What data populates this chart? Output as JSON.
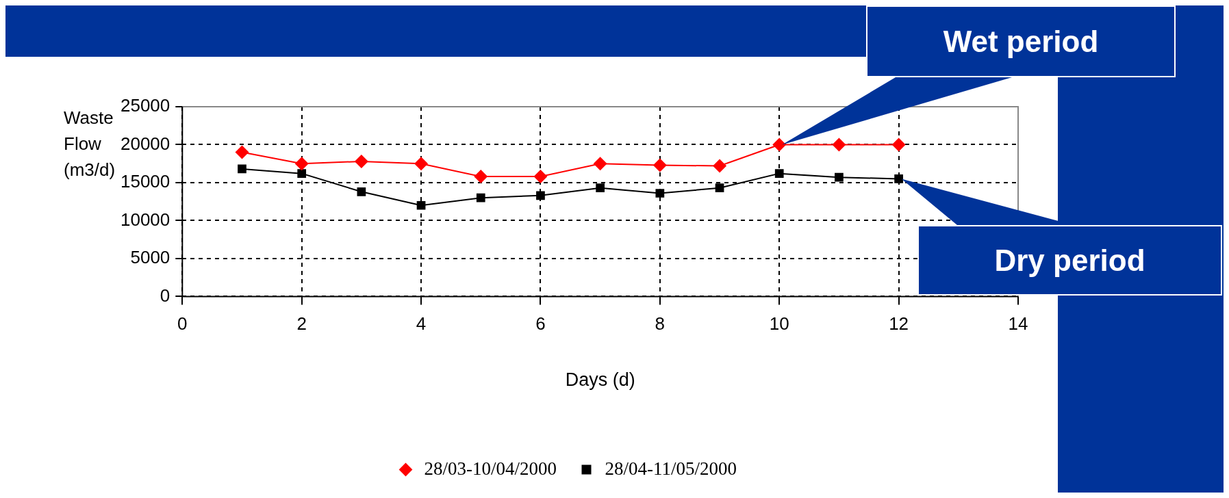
{
  "chart_data": {
    "type": "line",
    "xlabel": "Days (d)",
    "ylabel": "Waste Flow (m3/d)",
    "xlim": [
      0,
      14
    ],
    "xticks": [
      0,
      2,
      4,
      6,
      8,
      10,
      12,
      14
    ],
    "ylim": [
      0,
      25000
    ],
    "yticks": [
      0,
      5000,
      10000,
      15000,
      20000,
      25000
    ],
    "grid": true,
    "legend": "bottom",
    "line_style": "solid",
    "series": [
      {
        "name": "28/03-10/04/2000",
        "color": "#ff0000",
        "marker": "diamond",
        "x": [
          1,
          2,
          3,
          4,
          5,
          6,
          7,
          8,
          9,
          10,
          11,
          12
        ],
        "values": [
          19000,
          17500,
          17800,
          17500,
          15800,
          15800,
          17500,
          17300,
          17200,
          20000,
          20000,
          20000
        ]
      },
      {
        "name": "28/04-11/05/2000",
        "color": "#000000",
        "marker": "square",
        "x": [
          1,
          2,
          3,
          4,
          5,
          6,
          7,
          8,
          9,
          10,
          11,
          12
        ],
        "values": [
          16800,
          16200,
          13800,
          12000,
          13000,
          13300,
          14300,
          13600,
          14300,
          16200,
          15700,
          15500
        ]
      }
    ],
    "annotations": [
      {
        "text": "Wet period",
        "x": 10,
        "y": 20000
      },
      {
        "text": "Dry period",
        "x": 12,
        "y": 15500
      }
    ]
  }
}
